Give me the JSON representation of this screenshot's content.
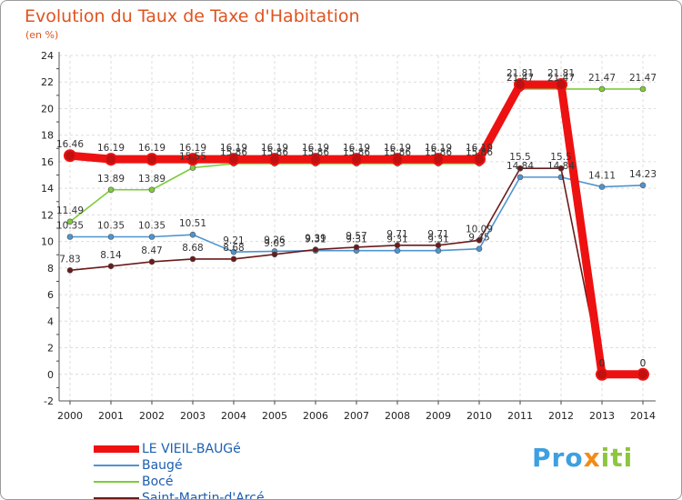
{
  "chart_data": {
    "type": "line",
    "title": "Evolution du Taux de Taxe d'Habitation",
    "subtitle": "(en %)",
    "x": [
      "2000",
      "2001",
      "2002",
      "2003",
      "2004",
      "2005",
      "2006",
      "2007",
      "2008",
      "2009",
      "2010",
      "2011",
      "2012",
      "2013",
      "2014"
    ],
    "ylim": [
      -2,
      24
    ],
    "yticks": [
      "-2",
      "0",
      "2",
      "4",
      "6",
      "8",
      "10",
      "12",
      "14",
      "16",
      "18",
      "20",
      "22",
      "24"
    ],
    "grid": true,
    "legend_position": "bottom-left",
    "series": [
      {
        "name": "LE VIEIL-BAUGé",
        "color": "#ee1111",
        "values": [
          16.46,
          16.19,
          16.19,
          16.19,
          16.19,
          16.19,
          16.19,
          16.19,
          16.19,
          16.19,
          16.19,
          21.81,
          21.81,
          0,
          0
        ],
        "labels": [
          "16.46",
          "16.19",
          "16.19",
          "16.19",
          "16.19",
          "16.19",
          "16.19",
          "16.19",
          "16.19",
          "16.19",
          "16.19",
          "21.81",
          "21.81",
          "0",
          "0"
        ]
      },
      {
        "name": "Baugé",
        "color": "#4e94cf",
        "values": [
          10.35,
          10.35,
          10.35,
          10.51,
          9.21,
          9.26,
          9.31,
          9.31,
          9.31,
          9.31,
          9.45,
          14.84,
          14.84,
          14.11,
          14.23
        ],
        "labels": [
          "10.35",
          "10.35",
          "10.35",
          "10.51",
          "9.21",
          "9.26",
          "9.31",
          "9.31",
          "9.31",
          "9.31",
          "9.45",
          "14.84",
          "14.84",
          "14.11",
          "14.23"
        ]
      },
      {
        "name": "Bocé",
        "color": "#7dcc3a",
        "values": [
          11.49,
          13.89,
          13.89,
          15.55,
          15.86,
          15.86,
          15.86,
          15.86,
          15.86,
          15.86,
          15.86,
          21.47,
          21.47,
          21.47,
          21.47
        ],
        "labels": [
          "11.49",
          "13.89",
          "13.89",
          "15.55",
          "15.86",
          "15.86",
          "15.86",
          "15.86",
          "15.86",
          "15.86",
          "15.86",
          "21.47",
          "21.47",
          "21.47",
          "21.47"
        ]
      },
      {
        "name": "Saint-Martin-d'Arcé",
        "color": "#6b1a1a",
        "values": [
          7.83,
          8.14,
          8.47,
          8.68,
          8.68,
          9.03,
          9.39,
          9.57,
          9.71,
          9.71,
          10.09,
          15.5,
          15.5,
          0,
          0
        ],
        "labels": [
          "7.83",
          "8.14",
          "8.47",
          "8.68",
          "8.68",
          "9.03",
          "9.39",
          "9.57",
          "9.71",
          "9.71",
          "10.09",
          "15.5",
          "15.5",
          "0",
          "0"
        ]
      }
    ]
  },
  "logo": {
    "part1": "Pro",
    "part2": "x",
    "part3": "iti"
  }
}
